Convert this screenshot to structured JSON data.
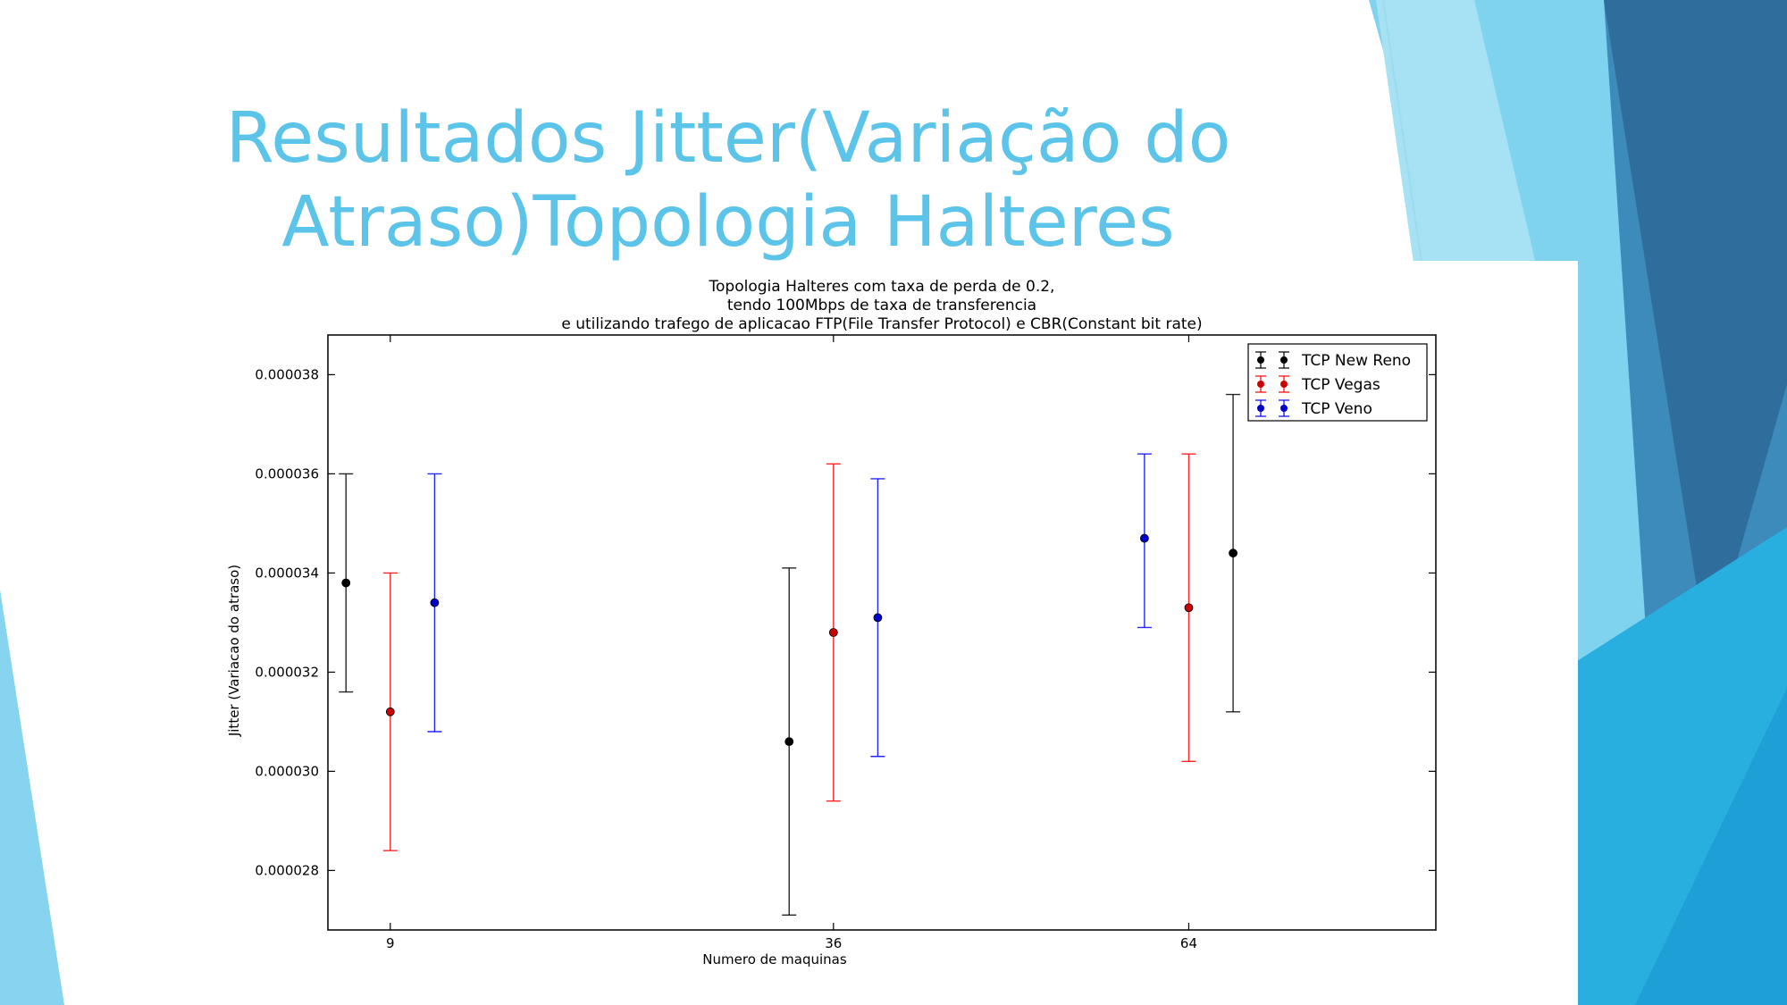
{
  "slide": {
    "title_line1": "Resultados Jitter(Variação do",
    "title_line2": "Atraso)Topologia Halteres",
    "colors": {
      "title": "#5bc4e8",
      "accent_light": "#7dd3ee",
      "accent_mid": "#29aee0",
      "accent_dark": "#2f6d9c"
    }
  },
  "chart_data": {
    "type": "errorbar",
    "title": [
      "Topologia Halteres com taxa de perda de 0.2,",
      "tendo 100Mbps de taxa de transferencia",
      "e utilizando trafego de aplicacao FTP(File Transfer Protocol) e CBR(Constant bit rate)"
    ],
    "xlabel": "Numero de maquinas",
    "ylabel": "Jitter (Variacao do atraso)",
    "ylim": [
      2.68e-05,
      3.88e-05
    ],
    "yticks": [
      2.8e-05,
      3e-05,
      3.2e-05,
      3.4e-05,
      3.6e-05,
      3.8e-05
    ],
    "ytick_labels": [
      "0.000028",
      "0.000030",
      "0.000032",
      "0.000034",
      "0.000036",
      "0.000038"
    ],
    "xticks": [
      {
        "label": "9",
        "pos": 0.0563
      },
      {
        "label": "36",
        "pos": 0.4563
      },
      {
        "label": "64",
        "pos": 0.777
      }
    ],
    "legend_position": "top-right",
    "grid": false,
    "series": [
      {
        "name": "TCP New Reno",
        "color": "#000000",
        "points": [
          {
            "xpos": 0.0163,
            "y": 3.38e-05,
            "lower": 3.16e-05,
            "upper": 3.6e-05
          },
          {
            "xpos": 0.4163,
            "y": 3.06e-05,
            "lower": 2.71e-05,
            "upper": 3.41e-05
          },
          {
            "xpos": 0.817,
            "y": 3.44e-05,
            "lower": 3.12e-05,
            "upper": 3.76e-05
          }
        ]
      },
      {
        "name": "TCP Vegas",
        "color": "#ff0000",
        "points": [
          {
            "xpos": 0.0563,
            "y": 3.12e-05,
            "lower": 2.84e-05,
            "upper": 3.4e-05
          },
          {
            "xpos": 0.4563,
            "y": 3.28e-05,
            "lower": 2.94e-05,
            "upper": 3.62e-05
          },
          {
            "xpos": 0.777,
            "y": 3.33e-05,
            "lower": 3.02e-05,
            "upper": 3.64e-05
          }
        ]
      },
      {
        "name": "TCP Veno",
        "color": "#0000ff",
        "points": [
          {
            "xpos": 0.0963,
            "y": 3.34e-05,
            "lower": 3.08e-05,
            "upper": 3.6e-05
          },
          {
            "xpos": 0.4963,
            "y": 3.31e-05,
            "lower": 3.03e-05,
            "upper": 3.59e-05
          },
          {
            "xpos": 0.737,
            "y": 3.47e-05,
            "lower": 3.29e-05,
            "upper": 3.64e-05
          }
        ]
      }
    ]
  }
}
